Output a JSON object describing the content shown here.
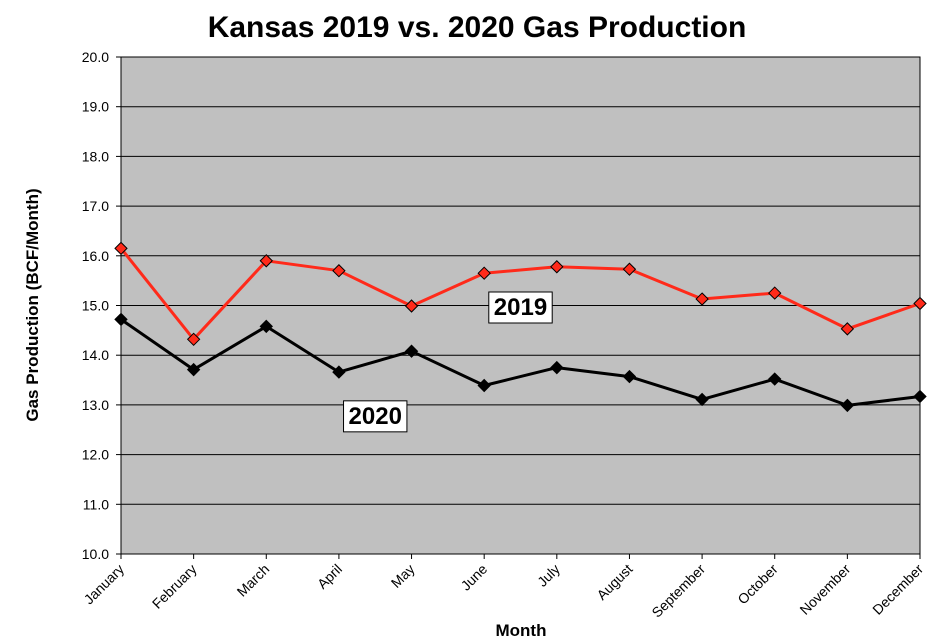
{
  "chart_data": {
    "type": "line",
    "title": "Kansas 2019 vs. 2020 Gas Production",
    "xlabel": "Month",
    "ylabel": "Gas Production (BCF/Month)",
    "ylim": [
      10.0,
      20.0
    ],
    "y_ticks": [
      "10.0",
      "11.0",
      "12.0",
      "13.0",
      "14.0",
      "15.0",
      "16.0",
      "17.0",
      "18.0",
      "19.0",
      "20.0"
    ],
    "grid": true,
    "background": "#c0c0c0",
    "categories": [
      "January",
      "February",
      "March",
      "April",
      "May",
      "June",
      "July",
      "August",
      "September",
      "October",
      "November",
      "December"
    ],
    "series": [
      {
        "name": "2019",
        "color": "#ff2a1a",
        "marker": "diamond",
        "marker_fill": "#ff2a1a",
        "values": [
          16.15,
          14.32,
          15.9,
          15.7,
          14.99,
          15.65,
          15.78,
          15.73,
          15.13,
          15.25,
          14.53,
          15.04
        ]
      },
      {
        "name": "2020",
        "color": "#000000",
        "marker": "diamond",
        "marker_fill": "#000000",
        "values": [
          14.72,
          13.71,
          14.58,
          13.66,
          14.08,
          13.39,
          13.75,
          13.57,
          13.11,
          13.52,
          12.99,
          13.17
        ]
      }
    ]
  }
}
